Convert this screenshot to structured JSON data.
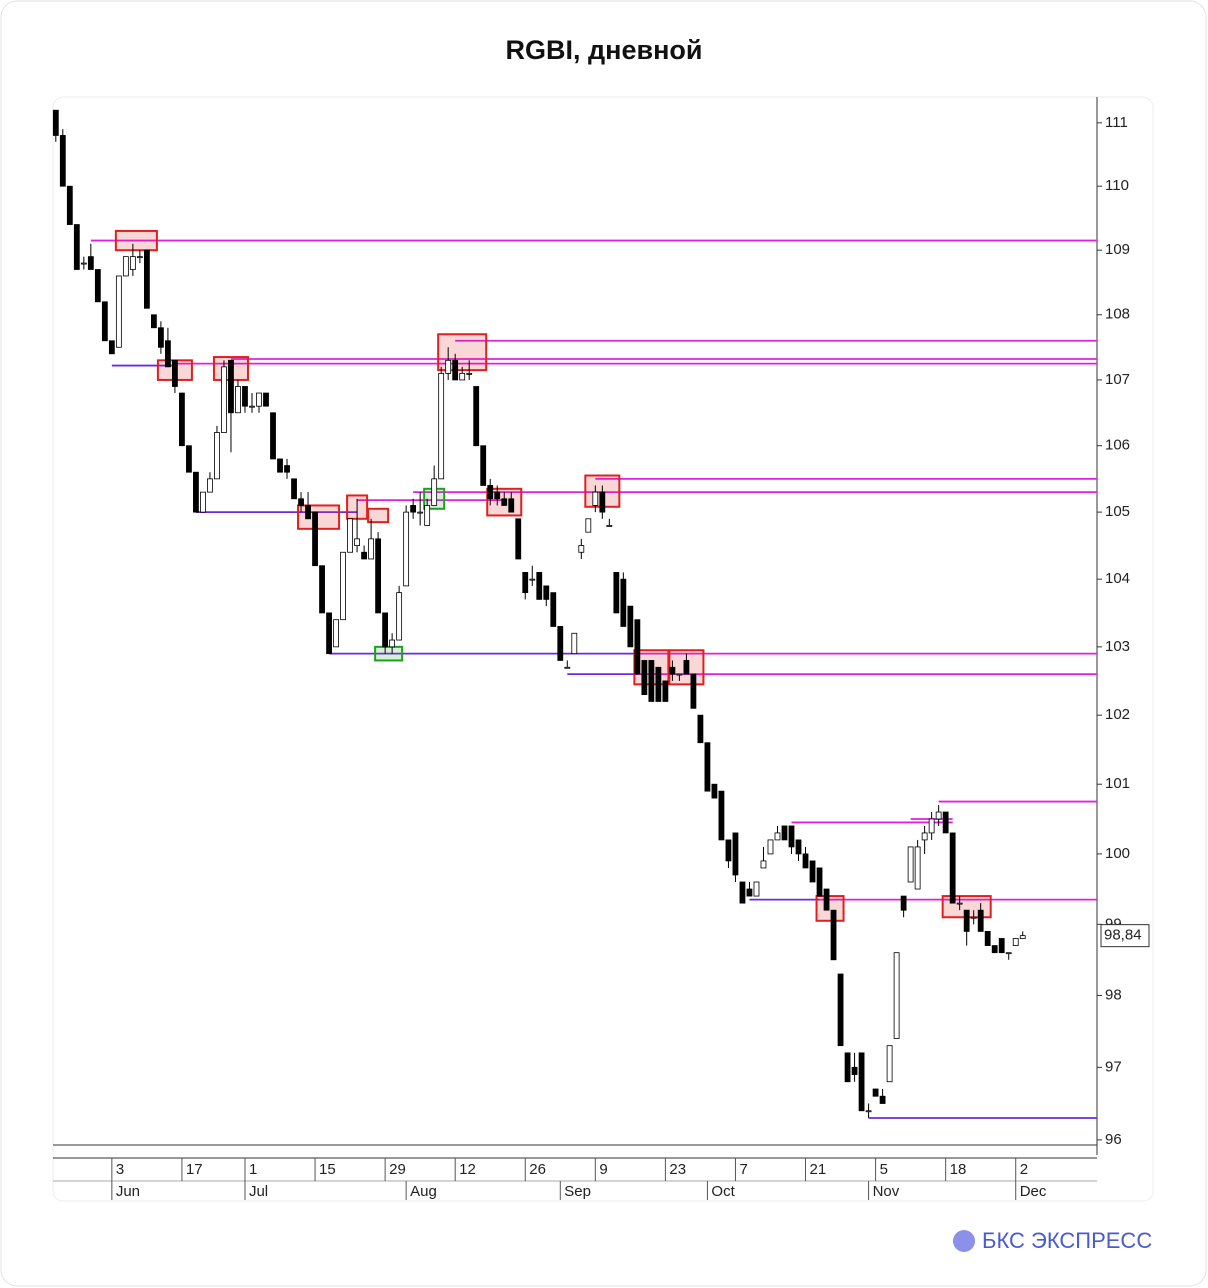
{
  "chart_data": {
    "type": "candlestick",
    "title": "RGBI, дневной",
    "logo": "БКС ЭКСПРЕСС",
    "log_scale": true,
    "ylim": [
      95.93,
      111.41
    ],
    "yticks": [
      96,
      97,
      98,
      99,
      100,
      101,
      102,
      103,
      104,
      105,
      106,
      107,
      108,
      109,
      110,
      111
    ],
    "xlim": [
      -0.4,
      148.6
    ],
    "xticks": [
      {
        "value": 8,
        "label": "3"
      },
      {
        "value": 18,
        "label": "17"
      },
      {
        "value": 27,
        "label": "1"
      },
      {
        "value": 37,
        "label": "15"
      },
      {
        "value": 47,
        "label": "29"
      },
      {
        "value": 57,
        "label": "12"
      },
      {
        "value": 67,
        "label": "26"
      },
      {
        "value": 77,
        "label": "9"
      },
      {
        "value": 87,
        "label": "23"
      },
      {
        "value": 97,
        "label": "7"
      },
      {
        "value": 107,
        "label": "21"
      },
      {
        "value": 117,
        "label": "5"
      },
      {
        "value": 127,
        "label": "18"
      },
      {
        "value": 137,
        "label": "2"
      }
    ],
    "months": [
      {
        "value": 8,
        "label": "Jun"
      },
      {
        "value": 27,
        "label": "Jul"
      },
      {
        "value": 50,
        "label": "Aug"
      },
      {
        "value": 72,
        "label": "Sep"
      },
      {
        "value": 93,
        "label": "Oct"
      },
      {
        "value": 116,
        "label": "Nov"
      },
      {
        "value": 137,
        "label": "Dec"
      }
    ],
    "up_color": "#ffffff",
    "down_color": "#000000",
    "open": [
      111.2,
      110.8,
      110.0,
      109.4,
      108.8,
      108.9,
      108.7,
      108.2,
      107.6,
      107.5,
      108.6,
      108.7,
      108.9,
      109.0,
      108.0,
      107.8,
      107.6,
      107.3,
      106.8,
      106.0,
      105.6,
      105.0,
      105.3,
      105.5,
      106.2,
      107.3,
      106.5,
      106.9,
      106.6,
      106.6,
      106.8,
      106.5,
      105.8,
      105.7,
      105.5,
      105.2,
      105.1,
      105.0,
      104.2,
      103.5,
      103.0,
      103.4,
      104.4,
      104.5,
      104.4,
      104.3,
      104.6,
      103.5,
      103.0,
      103.1,
      103.9,
      105.1,
      105.0,
      104.8,
      105.1,
      105.5,
      107.1,
      107.3,
      107.0,
      107.1,
      106.9,
      106.0,
      105.4,
      105.3,
      105.2,
      105.2,
      104.9,
      104.1,
      104.0,
      104.1,
      103.9,
      103.8,
      103.3,
      102.7,
      102.9,
      104.4,
      104.7,
      105.1,
      105.3,
      104.8,
      104.1,
      104.0,
      103.6,
      103.4,
      102.8,
      102.8,
      102.7,
      102.5,
      102.7,
      102.6,
      102.8,
      102.6,
      102.0,
      101.6,
      101.0,
      100.9,
      100.2,
      100.3,
      99.6,
      99.5,
      99.4,
      99.8,
      100.0,
      100.2,
      100.4,
      100.4,
      100.2,
      100.0,
      99.9,
      99.8,
      99.5,
      99.2,
      98.3,
      97.2,
      97.0,
      97.2,
      96.4,
      96.7,
      96.6,
      96.8,
      97.4,
      99.4,
      99.6,
      99.5,
      100.2,
      100.3,
      100.5,
      100.6,
      100.3,
      99.3,
      99.2,
      99.1,
      99.2,
      98.9,
      98.7,
      98.8,
      98.6,
      98.7,
      98.8
    ],
    "high": [
      111.2,
      110.9,
      110.0,
      109.4,
      108.9,
      109.1,
      108.7,
      108.2,
      107.6,
      108.6,
      108.9,
      109.1,
      109.0,
      109.0,
      108.0,
      107.9,
      107.8,
      107.3,
      106.8,
      106.0,
      105.6,
      105.3,
      105.6,
      106.3,
      107.3,
      107.3,
      107.0,
      106.9,
      106.8,
      106.8,
      106.8,
      106.5,
      105.8,
      105.8,
      105.5,
      105.3,
      105.3,
      105.0,
      104.2,
      103.5,
      103.4,
      104.4,
      104.9,
      105.2,
      104.5,
      104.9,
      104.7,
      103.5,
      103.2,
      103.9,
      105.1,
      105.2,
      105.3,
      105.2,
      105.7,
      107.2,
      107.5,
      107.4,
      107.2,
      107.3,
      106.9,
      106.0,
      105.5,
      105.4,
      105.3,
      105.3,
      104.9,
      104.1,
      104.2,
      104.1,
      103.9,
      103.8,
      103.3,
      102.8,
      103.2,
      104.6,
      104.9,
      105.4,
      105.4,
      104.9,
      104.1,
      104.1,
      103.6,
      103.4,
      102.8,
      102.8,
      102.7,
      102.5,
      102.8,
      102.6,
      102.9,
      102.6,
      102.0,
      101.6,
      101.0,
      100.9,
      100.2,
      100.3,
      99.6,
      99.6,
      99.6,
      100.1,
      100.2,
      100.4,
      100.4,
      100.4,
      100.2,
      100.1,
      99.9,
      99.8,
      99.5,
      99.2,
      98.3,
      97.2,
      97.2,
      97.2,
      96.5,
      96.7,
      96.7,
      97.3,
      98.6,
      99.4,
      100.1,
      100.2,
      100.4,
      100.6,
      100.7,
      100.6,
      100.3,
      99.4,
      99.2,
      99.2,
      99.3,
      98.9,
      98.7,
      98.8,
      98.6,
      98.8,
      98.9
    ],
    "low": [
      110.7,
      110.0,
      109.4,
      108.7,
      108.7,
      108.7,
      108.2,
      107.6,
      107.4,
      107.5,
      108.6,
      108.6,
      108.8,
      108.1,
      107.8,
      107.4,
      107.2,
      106.8,
      106.0,
      105.6,
      105.0,
      105.0,
      105.3,
      105.5,
      106.2,
      105.9,
      106.5,
      106.5,
      106.5,
      106.5,
      106.6,
      105.8,
      105.6,
      105.5,
      105.2,
      105.0,
      104.9,
      104.2,
      103.5,
      102.9,
      103.0,
      103.4,
      104.4,
      104.4,
      104.3,
      104.3,
      103.5,
      102.9,
      102.9,
      103.1,
      103.9,
      104.9,
      104.8,
      104.8,
      105.1,
      105.5,
      107.0,
      107.0,
      107.0,
      107.0,
      106.0,
      105.4,
      105.1,
      105.1,
      105.1,
      105.0,
      104.3,
      103.7,
      103.9,
      103.7,
      103.6,
      103.3,
      102.8,
      102.7,
      102.9,
      104.3,
      104.7,
      105.0,
      104.9,
      104.8,
      103.5,
      103.3,
      103.0,
      102.6,
      102.3,
      102.2,
      102.2,
      102.2,
      102.5,
      102.5,
      102.6,
      102.1,
      101.6,
      100.9,
      100.8,
      100.2,
      99.8,
      99.6,
      99.3,
      99.4,
      99.4,
      99.8,
      100.0,
      100.2,
      100.2,
      100.0,
      99.9,
      99.8,
      99.6,
      99.4,
      99.2,
      98.5,
      97.3,
      96.8,
      96.8,
      96.4,
      96.3,
      96.6,
      96.5,
      96.8,
      97.4,
      99.1,
      99.6,
      99.5,
      100.0,
      100.2,
      100.4,
      100.3,
      99.3,
      99.2,
      98.7,
      99.0,
      98.9,
      98.7,
      98.6,
      98.6,
      98.5,
      98.7,
      98.8
    ],
    "close": [
      110.8,
      110.0,
      109.4,
      108.7,
      108.8,
      108.7,
      108.2,
      107.6,
      107.4,
      108.6,
      108.9,
      108.9,
      108.9,
      108.1,
      107.8,
      107.5,
      107.2,
      106.9,
      106.0,
      105.6,
      105.0,
      105.3,
      105.5,
      106.2,
      107.2,
      106.5,
      106.9,
      106.6,
      106.6,
      106.8,
      106.6,
      105.8,
      105.6,
      105.6,
      105.2,
      105.1,
      104.9,
      104.2,
      103.5,
      102.9,
      103.4,
      104.4,
      104.9,
      104.6,
      104.3,
      104.6,
      103.5,
      103.0,
      103.1,
      103.8,
      105.0,
      105.0,
      105.0,
      105.1,
      105.5,
      107.1,
      107.3,
      107.0,
      107.1,
      107.1,
      106.0,
      105.4,
      105.2,
      105.2,
      105.1,
      105.0,
      104.3,
      103.8,
      104.0,
      103.7,
      103.7,
      103.3,
      102.8,
      102.7,
      103.2,
      104.5,
      104.9,
      105.3,
      105.0,
      104.8,
      103.5,
      103.3,
      103.0,
      102.6,
      102.3,
      102.2,
      102.2,
      102.2,
      102.6,
      102.6,
      102.6,
      102.1,
      101.6,
      100.9,
      100.8,
      100.2,
      99.9,
      99.7,
      99.3,
      99.4,
      99.6,
      99.9,
      100.2,
      100.3,
      100.2,
      100.1,
      100.0,
      99.8,
      99.6,
      99.4,
      99.2,
      98.5,
      97.3,
      96.8,
      96.9,
      96.4,
      96.4,
      96.6,
      96.5,
      97.3,
      98.6,
      99.2,
      100.1,
      100.1,
      100.3,
      100.5,
      100.6,
      100.3,
      99.3,
      99.3,
      98.9,
      99.1,
      98.9,
      98.7,
      98.6,
      98.6,
      98.6,
      98.8,
      98.84
    ],
    "last": {
      "value": 98.84,
      "label": "98,84"
    },
    "levels": [
      {
        "value": 109.15,
        "from": 5,
        "color": "#e020e0"
      },
      {
        "value": 107.6,
        "from": 57,
        "color": "#e020e0"
      },
      {
        "value": 107.22,
        "from": 8,
        "to": 17,
        "color": "#6a2be0"
      },
      {
        "value": 107.25,
        "from": 17,
        "color": "#e020e0"
      },
      {
        "value": 107.32,
        "from": 25,
        "color": "#e020e0"
      },
      {
        "value": 105.5,
        "from": 77,
        "color": "#e020e0"
      },
      {
        "value": 105.3,
        "from": 51,
        "color": "#e020e0"
      },
      {
        "value": 105.18,
        "from": 43,
        "to": 64,
        "color": "#e020e0"
      },
      {
        "value": 105.0,
        "from": 20,
        "to": 43,
        "color": "#6a2be0"
      },
      {
        "value": 102.9,
        "from": 39,
        "to": 83,
        "color": "#6a2be0"
      },
      {
        "value": 102.9,
        "from": 83,
        "color": "#e020e0"
      },
      {
        "value": 102.6,
        "from": 73,
        "to": 83,
        "color": "#6a2be0"
      },
      {
        "value": 102.6,
        "from": 83,
        "color": "#e020e0"
      },
      {
        "value": 100.75,
        "from": 126,
        "color": "#e020e0"
      },
      {
        "value": 100.45,
        "from": 105,
        "to": 128,
        "color": "#e020e0"
      },
      {
        "value": 100.5,
        "from": 122,
        "to": 128,
        "color": "#e020e0"
      },
      {
        "value": 99.35,
        "from": 99,
        "to": 109,
        "color": "#6a2be0"
      },
      {
        "value": 99.35,
        "from": 109,
        "color": "#e020e0"
      },
      {
        "value": 96.3,
        "from": 116,
        "color": "#6a2be0"
      }
    ],
    "boxes": [
      {
        "x0": 9,
        "x1": 14,
        "y0": 109.0,
        "y1": 109.3,
        "color": "#e02020"
      },
      {
        "x0": 15,
        "x1": 19,
        "y0": 107.0,
        "y1": 107.3,
        "color": "#e02020"
      },
      {
        "x0": 23,
        "x1": 27,
        "y0": 107.0,
        "y1": 107.35,
        "color": "#e02020"
      },
      {
        "x0": 35,
        "x1": 40,
        "y0": 104.75,
        "y1": 105.1,
        "color": "#e02020"
      },
      {
        "x0": 42,
        "x1": 44,
        "y0": 104.9,
        "y1": 105.25,
        "color": "#e02020"
      },
      {
        "x0": 45,
        "x1": 47,
        "y0": 104.85,
        "y1": 105.05,
        "color": "#e02020"
      },
      {
        "x0": 46,
        "x1": 49,
        "y0": 102.8,
        "y1": 103.0,
        "color": "#20a020"
      },
      {
        "x0": 53,
        "x1": 55,
        "y0": 105.05,
        "y1": 105.35,
        "color": "#20a020"
      },
      {
        "x0": 55,
        "x1": 61,
        "y0": 107.15,
        "y1": 107.7,
        "color": "#e02020"
      },
      {
        "x0": 62,
        "x1": 66,
        "y0": 104.95,
        "y1": 105.35,
        "color": "#e02020"
      },
      {
        "x0": 76,
        "x1": 80,
        "y0": 105.08,
        "y1": 105.55,
        "color": "#e02020"
      },
      {
        "x0": 83,
        "x1": 87,
        "y0": 102.45,
        "y1": 102.95,
        "color": "#e02020"
      },
      {
        "x0": 88,
        "x1": 92,
        "y0": 102.45,
        "y1": 102.95,
        "color": "#e02020"
      },
      {
        "x0": 109,
        "x1": 112,
        "y0": 99.05,
        "y1": 99.4,
        "color": "#e02020"
      },
      {
        "x0": 127,
        "x1": 133,
        "y0": 99.1,
        "y1": 99.4,
        "color": "#e02020"
      }
    ]
  }
}
